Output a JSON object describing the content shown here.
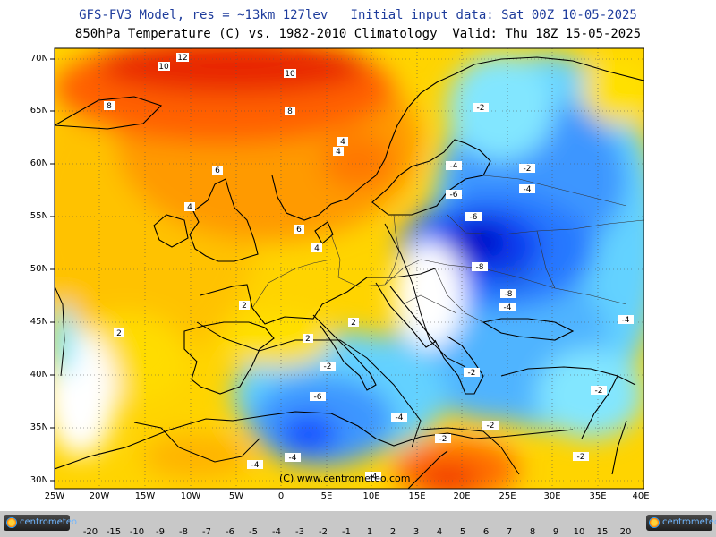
{
  "header": {
    "line1": "GFS-FV3 Model, res = ~13km 127lev   Initial input data: Sat 00Z 10-05-2025",
    "line2": "850hPa Temperature (C) vs. 1982-2010 Climatology  Valid: Thu 18Z 15-05-2025"
  },
  "axes": {
    "lat_labels": [
      "70N",
      "65N",
      "60N",
      "55N",
      "50N",
      "45N",
      "40N",
      "35N",
      "30N"
    ],
    "lon_labels": [
      "25W",
      "20W",
      "15W",
      "10W",
      "5W",
      "0",
      "5E",
      "10E",
      "15E",
      "20E",
      "25E",
      "30E",
      "35E",
      "40E"
    ]
  },
  "contour_labels": [
    "12",
    "10",
    "10",
    "8",
    "8",
    "6",
    "6",
    "4",
    "4",
    "4",
    "4",
    "2",
    "2",
    "2",
    "2",
    "-2",
    "-2",
    "-2",
    "-2",
    "-2",
    "-2",
    "-4",
    "-4",
    "-4",
    "-4",
    "-4",
    "-4",
    "-4",
    "-6",
    "-6",
    "-6",
    "-8",
    "-8",
    "-2",
    "-4",
    "-2"
  ],
  "copyright": "(C) www.centrometeo.com",
  "logo_text": "centrometeo",
  "colorbar": {
    "ticks": [
      "-20",
      "-15",
      "-10",
      "-9",
      "-8",
      "-7",
      "-6",
      "-5",
      "-4",
      "-3",
      "-2",
      "-1",
      "1",
      "2",
      "3",
      "4",
      "5",
      "6",
      "7",
      "8",
      "9",
      "10",
      "15",
      "20"
    ],
    "colors": [
      "#000050",
      "#00008c",
      "#0000c8",
      "#0028e6",
      "#1450ff",
      "#2878ff",
      "#3c96ff",
      "#50b4ff",
      "#64d2ff",
      "#82e6ff",
      "#aaf5ff",
      "#ffffff",
      "#ffff00",
      "#ffe000",
      "#ffc800",
      "#ffaa00",
      "#ff9000",
      "#ff7000",
      "#ff5000",
      "#f03000",
      "#dc1400",
      "#c80000",
      "#960000"
    ]
  }
}
